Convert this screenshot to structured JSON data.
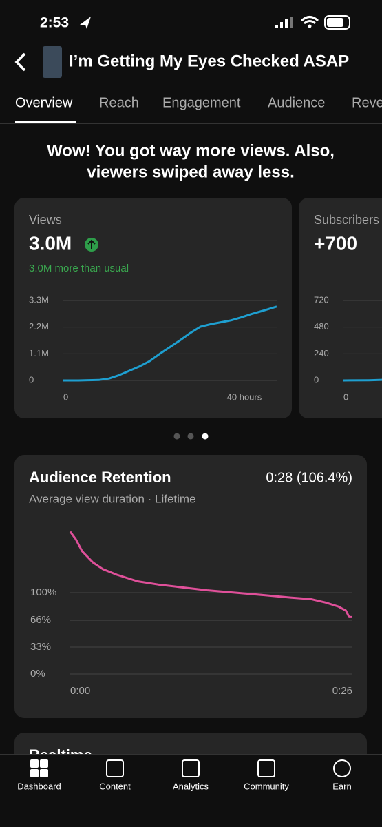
{
  "status": {
    "time": "2:53"
  },
  "header": {
    "title": "I’m Getting My Eyes Checked ASAP"
  },
  "tabs": [
    "Overview",
    "Reach",
    "Engagement",
    "Audience",
    "Reve"
  ],
  "headline": [
    "Wow! You got way more views. Also,",
    "viewers swiped away less."
  ],
  "cards": [
    {
      "label": "Views",
      "value": "3.0M",
      "note": "3.0M more than usual",
      "chart_data": {
        "type": "line",
        "color": "#1e9fd0",
        "x": [
          0,
          3,
          5,
          7,
          9,
          11,
          13,
          15,
          17,
          19,
          21,
          23,
          25,
          27,
          29,
          31,
          33,
          35,
          37,
          39,
          42
        ],
        "values": [
          0,
          0,
          10000,
          20000,
          80000,
          220000,
          400000,
          580000,
          800000,
          1100000,
          1380000,
          1660000,
          1960000,
          2220000,
          2320000,
          2400000,
          2480000,
          2600000,
          2740000,
          2860000,
          3050000
        ],
        "xlim": [
          0,
          42
        ],
        "xticks": [
          {
            "value": 0,
            "label": "0"
          },
          {
            "value": 40,
            "label": "40 hours"
          }
        ],
        "ylim": [
          0,
          3300000
        ],
        "yticks": [
          {
            "value": 0,
            "label": "0"
          },
          {
            "value": 1100000,
            "label": "1.1M"
          },
          {
            "value": 2200000,
            "label": "2.2M"
          },
          {
            "value": 3300000,
            "label": "3.3M"
          }
        ],
        "grid": true
      }
    },
    {
      "label": "Subscribers",
      "value": "+700",
      "chart_data": {
        "type": "line",
        "color": "#1e9fd0",
        "x": [
          0,
          5,
          10
        ],
        "values": [
          0,
          2,
          8
        ],
        "xlim": [
          0,
          42
        ],
        "xticks": [
          {
            "value": 0,
            "label": "0"
          }
        ],
        "ylim": [
          0,
          720
        ],
        "yticks": [
          0,
          240,
          480,
          720
        ],
        "grid": true
      }
    }
  ],
  "retention": {
    "title": "Audience Retention",
    "value": "0:28 (106.4%)",
    "subtitle": "Average view duration · Lifetime",
    "chart_data": {
      "type": "line",
      "color": "#e0509a",
      "x": [
        0,
        0.5,
        1.1,
        2.1,
        3.0,
        4.3,
        6.2,
        8.1,
        10.0,
        12.6,
        15.2,
        17.8,
        20.3,
        22.2,
        23.5,
        24.7,
        25.4,
        25.7,
        26.0
      ],
      "values": [
        175,
        166,
        151,
        137,
        129,
        122,
        114,
        110,
        107,
        103,
        100,
        97,
        94,
        92,
        88,
        83,
        78,
        70,
        70
      ],
      "xlim": [
        0,
        26
      ],
      "xticks": [
        {
          "value": 0,
          "label": "0:00"
        },
        {
          "value": 26,
          "label": "0:26"
        }
      ],
      "ylim": [
        0,
        180
      ],
      "yticks": [
        {
          "value": 0,
          "label": "0%"
        },
        {
          "value": 33,
          "label": "33%"
        },
        {
          "value": 66,
          "label": "66%"
        },
        {
          "value": 100,
          "label": "100%"
        }
      ],
      "grid": true
    }
  },
  "next_card": {
    "title": "Realtime"
  },
  "nav": [
    "Dashboard",
    "Content",
    "Analytics",
    "Community",
    "Earn"
  ]
}
